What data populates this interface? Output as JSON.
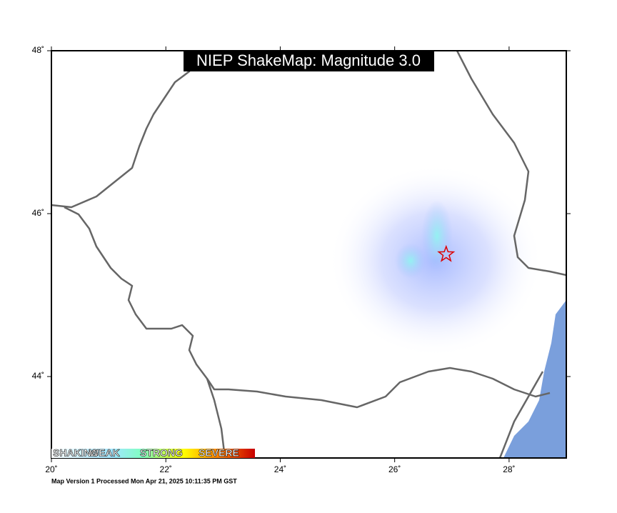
{
  "map": {
    "title": "NIEP ShakeMap: Magnitude 3.0",
    "xlim": [
      20,
      29
    ],
    "ylim": [
      43,
      48
    ],
    "xticks": [
      {
        "value": 20,
        "label": "20˚"
      },
      {
        "value": 22,
        "label": "22˚"
      },
      {
        "value": 24,
        "label": "24˚"
      },
      {
        "value": 26,
        "label": "26˚"
      },
      {
        "value": 28,
        "label": "28˚"
      }
    ],
    "yticks": [
      {
        "value": 44,
        "label": "44˚"
      },
      {
        "value": 46,
        "label": "46˚"
      },
      {
        "value": 48,
        "label": "48˚"
      }
    ],
    "epicenter": {
      "lon": 26.9,
      "lat": 45.5
    },
    "legend": {
      "labels": [
        "SHAKING",
        "WEAK",
        "STRONG",
        "SEVERE"
      ]
    },
    "footer": "Map Version 1 Processed Mon Apr 21, 2025 10:11:35 PM GST"
  }
}
